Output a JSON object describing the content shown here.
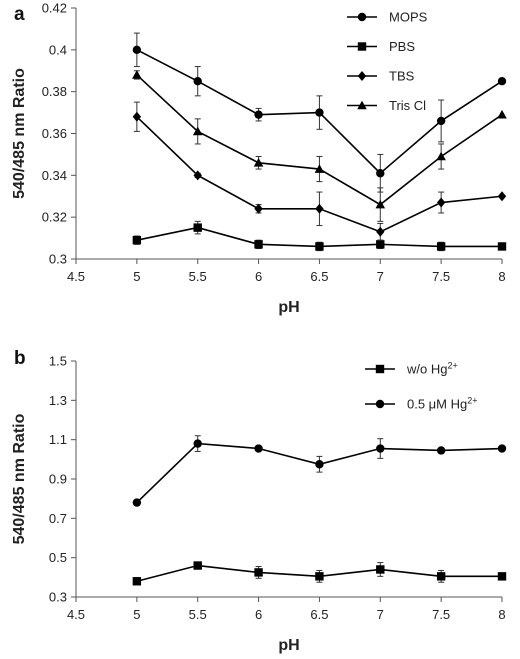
{
  "chart_data": [
    {
      "type": "line",
      "panel_label": "a",
      "xlabel": "pH",
      "ylabel": "540/485 nm Ratio",
      "xlim": [
        4.5,
        8
      ],
      "ylim": [
        0.3,
        0.42
      ],
      "xticks": [
        "4.5",
        "5",
        "5.5",
        "6",
        "6.5",
        "7",
        "7.5",
        "8"
      ],
      "yticks": [
        "0.3",
        "0.32",
        "0.34",
        "0.36",
        "0.38",
        "0.4",
        "0.42"
      ],
      "x": [
        5,
        5.5,
        6,
        6.5,
        7,
        7.5,
        8
      ],
      "grid": false,
      "legend_position": "top-right",
      "series": [
        {
          "name": "MOPS",
          "marker": "circle",
          "values": [
            0.4,
            0.385,
            0.369,
            0.37,
            0.341,
            0.366,
            0.385
          ],
          "errors": [
            0.008,
            0.007,
            0.003,
            0.008,
            0.009,
            0.01,
            0.0
          ]
        },
        {
          "name": "PBS",
          "marker": "square",
          "values": [
            0.309,
            0.315,
            0.307,
            0.306,
            0.307,
            0.306,
            0.306
          ],
          "errors": [
            0.002,
            0.003,
            0.002,
            0.002,
            0.002,
            0.002,
            0.0
          ]
        },
        {
          "name": "TBS",
          "marker": "diamond",
          "values": [
            0.368,
            0.34,
            0.324,
            0.324,
            0.313,
            0.327,
            0.33
          ],
          "errors": [
            0.007,
            0.001,
            0.002,
            0.008,
            0.004,
            0.005,
            0.0
          ]
        },
        {
          "name": "Tris Cl",
          "marker": "triangle",
          "values": [
            0.388,
            0.361,
            0.346,
            0.343,
            0.326,
            0.349,
            0.369
          ],
          "errors": [
            0.002,
            0.006,
            0.003,
            0.006,
            0.008,
            0.006,
            0.0
          ]
        }
      ]
    },
    {
      "type": "line",
      "panel_label": "b",
      "xlabel": "pH",
      "ylabel": "540/485 nm Ratio",
      "xlim": [
        4.5,
        8
      ],
      "ylim": [
        0.3,
        1.5
      ],
      "xticks": [
        "4.5",
        "5",
        "5.5",
        "6",
        "6.5",
        "7",
        "7.5",
        "8"
      ],
      "yticks": [
        "0.3",
        "0.5",
        "0.7",
        "0.9",
        "1.1",
        "1.3",
        "1.5"
      ],
      "x": [
        5,
        5.5,
        6,
        6.5,
        7,
        7.5,
        8
      ],
      "grid": false,
      "legend_position": "top-right",
      "series": [
        {
          "name": "w/o Hg",
          "name_sup": "2+",
          "marker": "square",
          "values": [
            0.38,
            0.46,
            0.425,
            0.405,
            0.44,
            0.405,
            0.405
          ],
          "errors": [
            0.0,
            0.0,
            0.03,
            0.03,
            0.035,
            0.03,
            0.0
          ]
        },
        {
          "name": "0.5 μM Hg",
          "name_sup": "2+",
          "marker": "circle",
          "values": [
            0.78,
            1.08,
            1.055,
            0.975,
            1.055,
            1.045,
            1.055
          ],
          "errors": [
            0.0,
            0.04,
            0.0,
            0.04,
            0.05,
            0.0,
            0.0
          ]
        }
      ]
    }
  ]
}
